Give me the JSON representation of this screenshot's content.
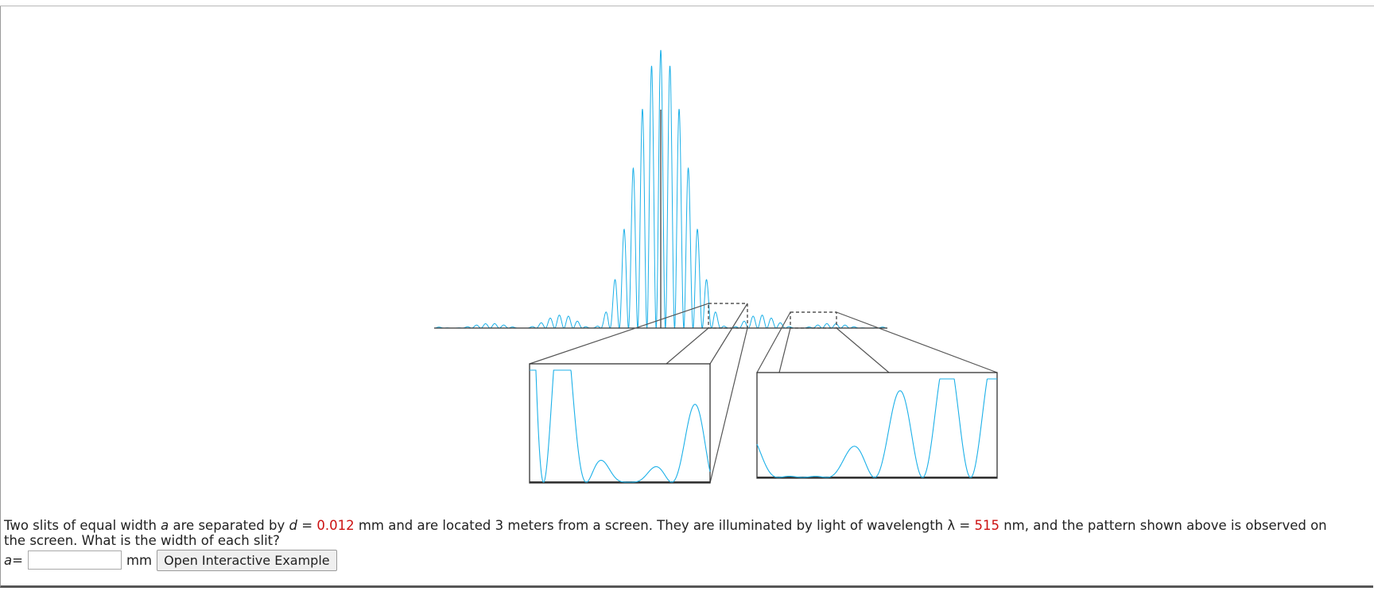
{
  "problem": {
    "t1": "Two slits of equal width ",
    "var_a": "a",
    "t2": " are separated by ",
    "var_d": "d",
    "t3": " = ",
    "d_value": "0.012",
    "t4": " mm and are located 3 meters from a screen. They are illuminated by light of wavelength λ = ",
    "lambda_value": "515",
    "t5": " nm, and the pattern shown above is observed on the screen. What is the width of each slit?"
  },
  "answer": {
    "label_var": "a",
    "label_eq": " =",
    "value": "",
    "unit": "mm",
    "button_label": "Open Interactive Example"
  },
  "colors": {
    "pattern": "#1cb0e8",
    "highlight": "#cc1111",
    "frame_lines": "#333333"
  },
  "icons": []
}
